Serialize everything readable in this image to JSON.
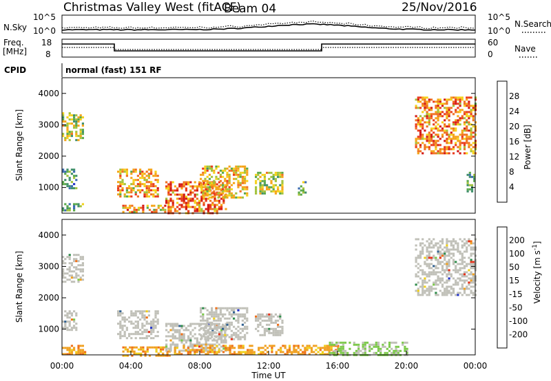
{
  "header": {
    "title": "Christmas Valley West (fitACF)",
    "beam": "Beam 04",
    "date": "25/Nov/2016"
  },
  "noise_panel": {
    "left_label": "N.Sky",
    "left_ticks": [
      "10^5",
      "10^0"
    ],
    "right_ticks": [
      "10^5",
      "10^0"
    ],
    "right_label": "N.Search"
  },
  "freq_panel": {
    "left_label_1": "Freq.",
    "left_label_2": "[MHz]",
    "left_ticks": [
      "18",
      "8"
    ],
    "right_ticks": [
      "60",
      "0"
    ],
    "right_label": "Nave"
  },
  "cpid": {
    "label": "CPID",
    "text": "normal (fast) 151 RF"
  },
  "chart_data": [
    {
      "type": "heatmap",
      "name": "power",
      "ylabel": "Slant Range [km]",
      "xlabel": "",
      "yticks": [
        "1000",
        "2000",
        "3000",
        "4000"
      ],
      "ylim": [
        180,
        4500
      ],
      "xlim_hours": [
        0,
        24
      ],
      "colorbar": {
        "label": "Power [dB]",
        "ticks": [
          "4",
          "8",
          "12",
          "16",
          "20",
          "24",
          "28"
        ],
        "colors": [
          "#2030c8",
          "#3a6ab0",
          "#3f8f6a",
          "#59a84a",
          "#a2c23a",
          "#f5d21a",
          "#f5a418",
          "#f07020",
          "#ea3a1c",
          "#d41a14"
        ]
      },
      "regions_hours_km_level": [
        [
          0.0,
          1.2,
          2500,
          3400,
          0.55
        ],
        [
          0.0,
          0.8,
          1000,
          1600,
          0.3
        ],
        [
          0.0,
          1.2,
          250,
          500,
          0.35
        ],
        [
          3.2,
          5.6,
          700,
          1600,
          0.75
        ],
        [
          3.5,
          6.0,
          200,
          450,
          0.8
        ],
        [
          6.0,
          9.5,
          200,
          1200,
          0.9
        ],
        [
          8.0,
          10.8,
          700,
          1700,
          0.7
        ],
        [
          11.2,
          12.8,
          800,
          1500,
          0.55
        ],
        [
          13.7,
          14.2,
          800,
          1200,
          0.4
        ],
        [
          20.5,
          24.0,
          2100,
          3900,
          0.85
        ],
        [
          23.5,
          24.0,
          900,
          1500,
          0.35
        ]
      ]
    },
    {
      "type": "heatmap",
      "name": "velocity",
      "ylabel": "Slant Range [km]",
      "xlabel": "Time UT",
      "yticks": [
        "1000",
        "2000",
        "3000",
        "4000"
      ],
      "xticks": [
        "00:00",
        "04:00",
        "08:00",
        "12:00",
        "16:00",
        "20:00",
        "00:00"
      ],
      "ylim": [
        180,
        4500
      ],
      "xlim_hours": [
        0,
        24
      ],
      "colorbar": {
        "label": "Velocity [m s^-1]",
        "ticks": [
          "200",
          "100",
          "50",
          "15",
          "-15",
          "-50",
          "-100",
          "-200"
        ],
        "colors": [
          "#2030c8",
          "#306090",
          "#2e8c4a",
          "#7cc94a",
          "#c0c0b8",
          "#f0d018",
          "#f0a020",
          "#f07018",
          "#e63018"
        ]
      },
      "regions_hours_km_class": [
        [
          0.0,
          1.2,
          2500,
          3400,
          "gray"
        ],
        [
          0.0,
          0.8,
          1000,
          1600,
          "gray"
        ],
        [
          0.0,
          1.4,
          180,
          500,
          "orange"
        ],
        [
          3.2,
          5.6,
          700,
          1600,
          "gray"
        ],
        [
          3.5,
          6.2,
          180,
          450,
          "orange"
        ],
        [
          6.0,
          9.5,
          300,
          1200,
          "gray"
        ],
        [
          8.0,
          10.8,
          700,
          1700,
          "gray"
        ],
        [
          6.5,
          16.0,
          180,
          500,
          "orange"
        ],
        [
          11.2,
          12.8,
          800,
          1500,
          "gray"
        ],
        [
          15.5,
          20.0,
          180,
          600,
          "green"
        ],
        [
          20.5,
          24.0,
          2100,
          3900,
          "gray"
        ]
      ]
    }
  ]
}
